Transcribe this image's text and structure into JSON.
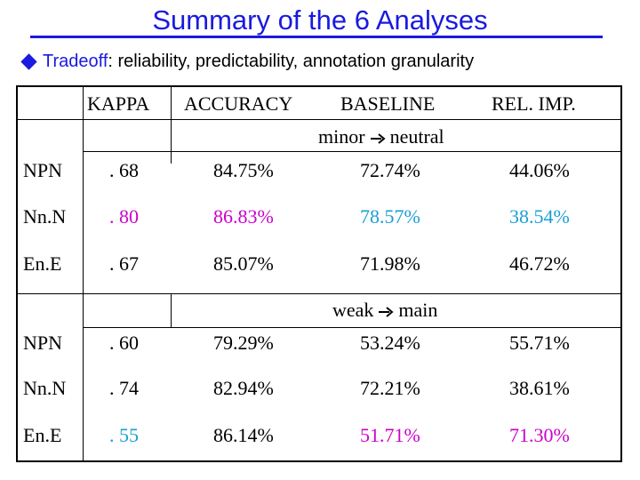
{
  "title": "Summary of the 6 Analyses",
  "bullet": {
    "lead": "Tradeoff",
    "text": ": reliability, predictability, annotation granularity"
  },
  "columns": [
    "",
    "KAPPA",
    "ACCURACY",
    "BASELINE",
    "REL. IMP."
  ],
  "sections": [
    {
      "label_from": "minor",
      "label_to": "neutral",
      "rows": [
        {
          "name": "NPN",
          "kappa": ". 68",
          "accuracy": "84.75%",
          "baseline": "72.74%",
          "rel_imp": "44.06%"
        },
        {
          "name": "Nn.N",
          "kappa": ". 80",
          "accuracy": "86.83%",
          "baseline": "78.57%",
          "rel_imp": "38.54%"
        },
        {
          "name": "En.E",
          "kappa": ". 67",
          "accuracy": "85.07%",
          "baseline": "71.98%",
          "rel_imp": "46.72%"
        }
      ]
    },
    {
      "label_from": "weak",
      "label_to": "main",
      "rows": [
        {
          "name": "NPN",
          "kappa": ". 60",
          "accuracy": "79.29%",
          "baseline": "53.24%",
          "rel_imp": "55.71%"
        },
        {
          "name": "Nn.N",
          "kappa": ". 74",
          "accuracy": "82.94%",
          "baseline": "72.21%",
          "rel_imp": "38.61%"
        },
        {
          "name": "En.E",
          "kappa": ". 55",
          "accuracy": "86.14%",
          "baseline": "51.71%",
          "rel_imp": "71.30%"
        }
      ]
    }
  ],
  "colors": {
    "title": "#1a1ae0",
    "highlight_magenta": "#cc00cc",
    "highlight_teal": "#1a9fd6"
  },
  "icons": {
    "bullet": "diamond-bullet-icon",
    "arrow": "right-arrow-icon"
  }
}
